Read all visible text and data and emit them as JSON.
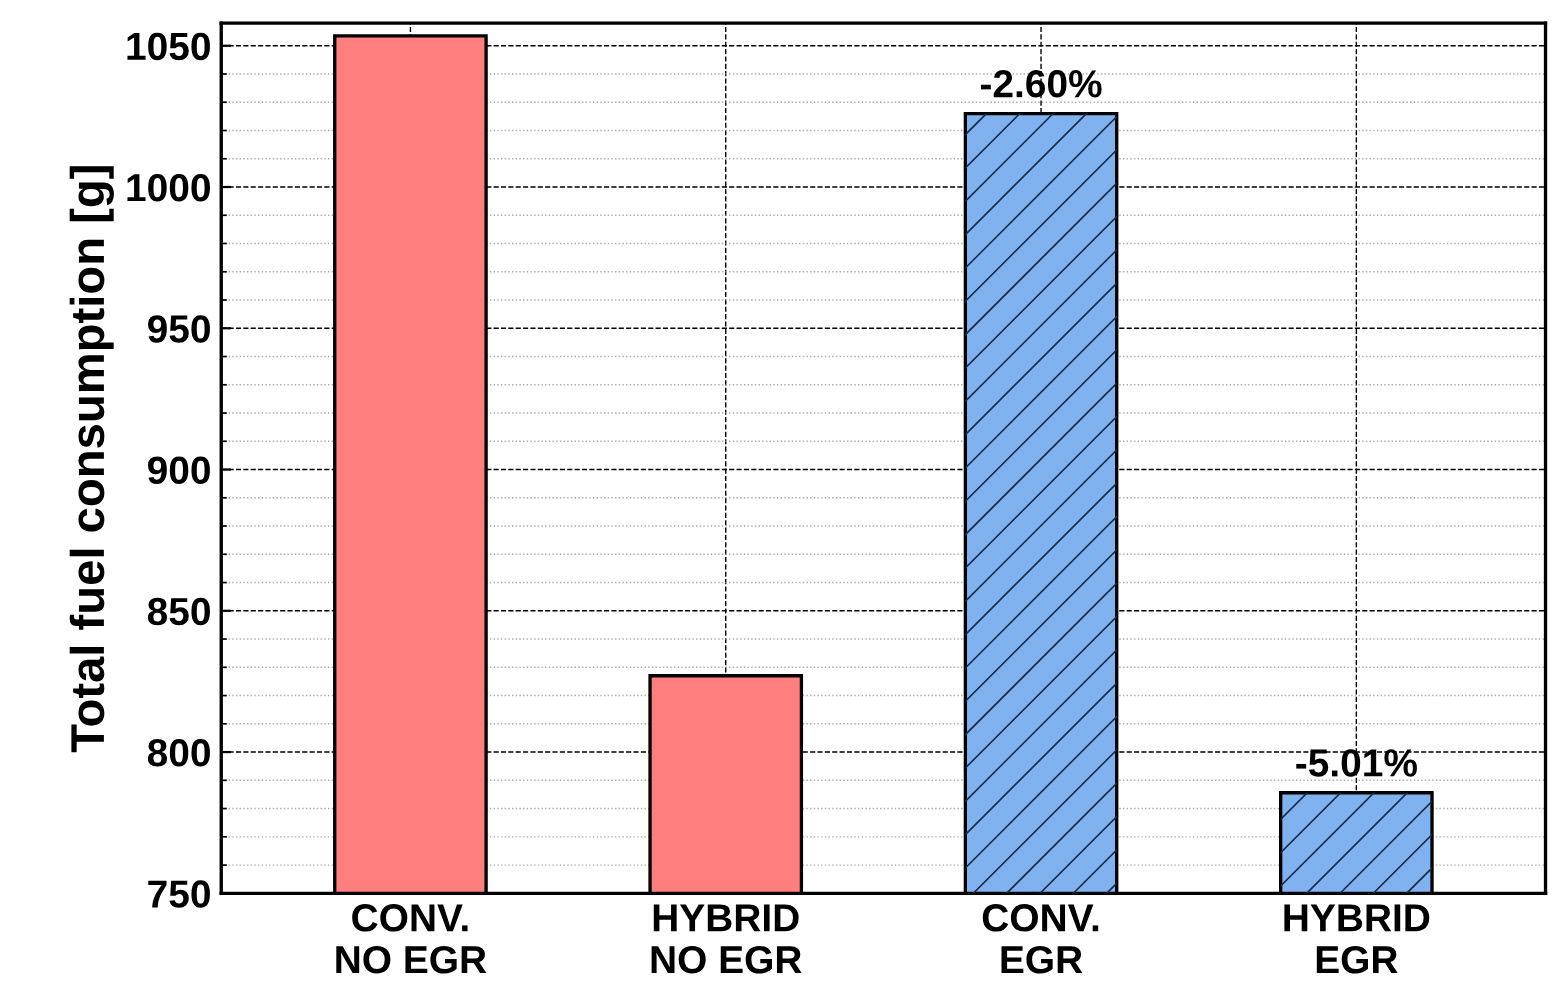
{
  "chart_data": {
    "type": "bar",
    "ylabel": "Total fuel consumption [g]",
    "categories": [
      "CONV.\nNO EGR",
      "HYBRID\nNO EGR",
      "CONV.\nEGR",
      "HYBRID\nEGR"
    ],
    "series": [
      {
        "color": "#ff7f7f",
        "values": [
          1053.5,
          827,
          null,
          null
        ]
      },
      {
        "color": "#7fb2ee",
        "values": [
          null,
          null,
          1026,
          785.6
        ]
      }
    ],
    "ylim": [
      750,
      1058
    ],
    "yticks": [
      750,
      800,
      850,
      900,
      950,
      1000,
      1050
    ],
    "grid": true,
    "annotations": [
      {
        "text": "-2.60%",
        "x": "CONV.\nEGR",
        "y": 1026
      },
      {
        "text": "-5.01%",
        "x": "HYBRID\nEGR",
        "y": 785.6
      }
    ]
  }
}
